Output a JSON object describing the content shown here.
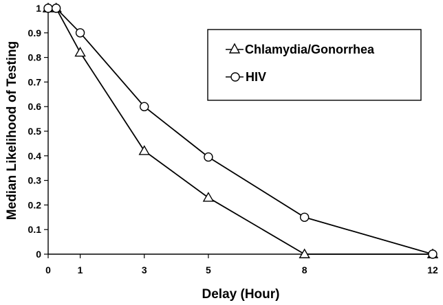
{
  "chart_data": {
    "type": "line",
    "title": "",
    "xlabel": "Delay (Hour)",
    "ylabel": "Median Likelihood of Testing",
    "x_ticks": [
      0,
      1,
      3,
      5,
      8,
      12
    ],
    "y_ticks": [
      0,
      0.1,
      0.2,
      0.3,
      0.4,
      0.5,
      0.6,
      0.7,
      0.8,
      0.9,
      1
    ],
    "xlim": [
      0,
      12
    ],
    "ylim": [
      0,
      1
    ],
    "grid": false,
    "legend_position": "top-right",
    "series": [
      {
        "name": "Chlamydia/Gonorrhea",
        "marker": "triangle",
        "points": [
          {
            "x": 0,
            "y": 1.0
          },
          {
            "x": 0.25,
            "y": 1.0
          },
          {
            "x": 1,
            "y": 0.82
          },
          {
            "x": 3,
            "y": 0.42
          },
          {
            "x": 5,
            "y": 0.23
          },
          {
            "x": 8,
            "y": 0.0
          },
          {
            "x": 12,
            "y": 0.0
          }
        ]
      },
      {
        "name": "HIV",
        "marker": "circle",
        "points": [
          {
            "x": 0,
            "y": 1.0
          },
          {
            "x": 0.25,
            "y": 1.0
          },
          {
            "x": 1,
            "y": 0.9
          },
          {
            "x": 3,
            "y": 0.6
          },
          {
            "x": 5,
            "y": 0.395
          },
          {
            "x": 8,
            "y": 0.15
          },
          {
            "x": 12,
            "y": 0.0
          }
        ]
      }
    ]
  }
}
